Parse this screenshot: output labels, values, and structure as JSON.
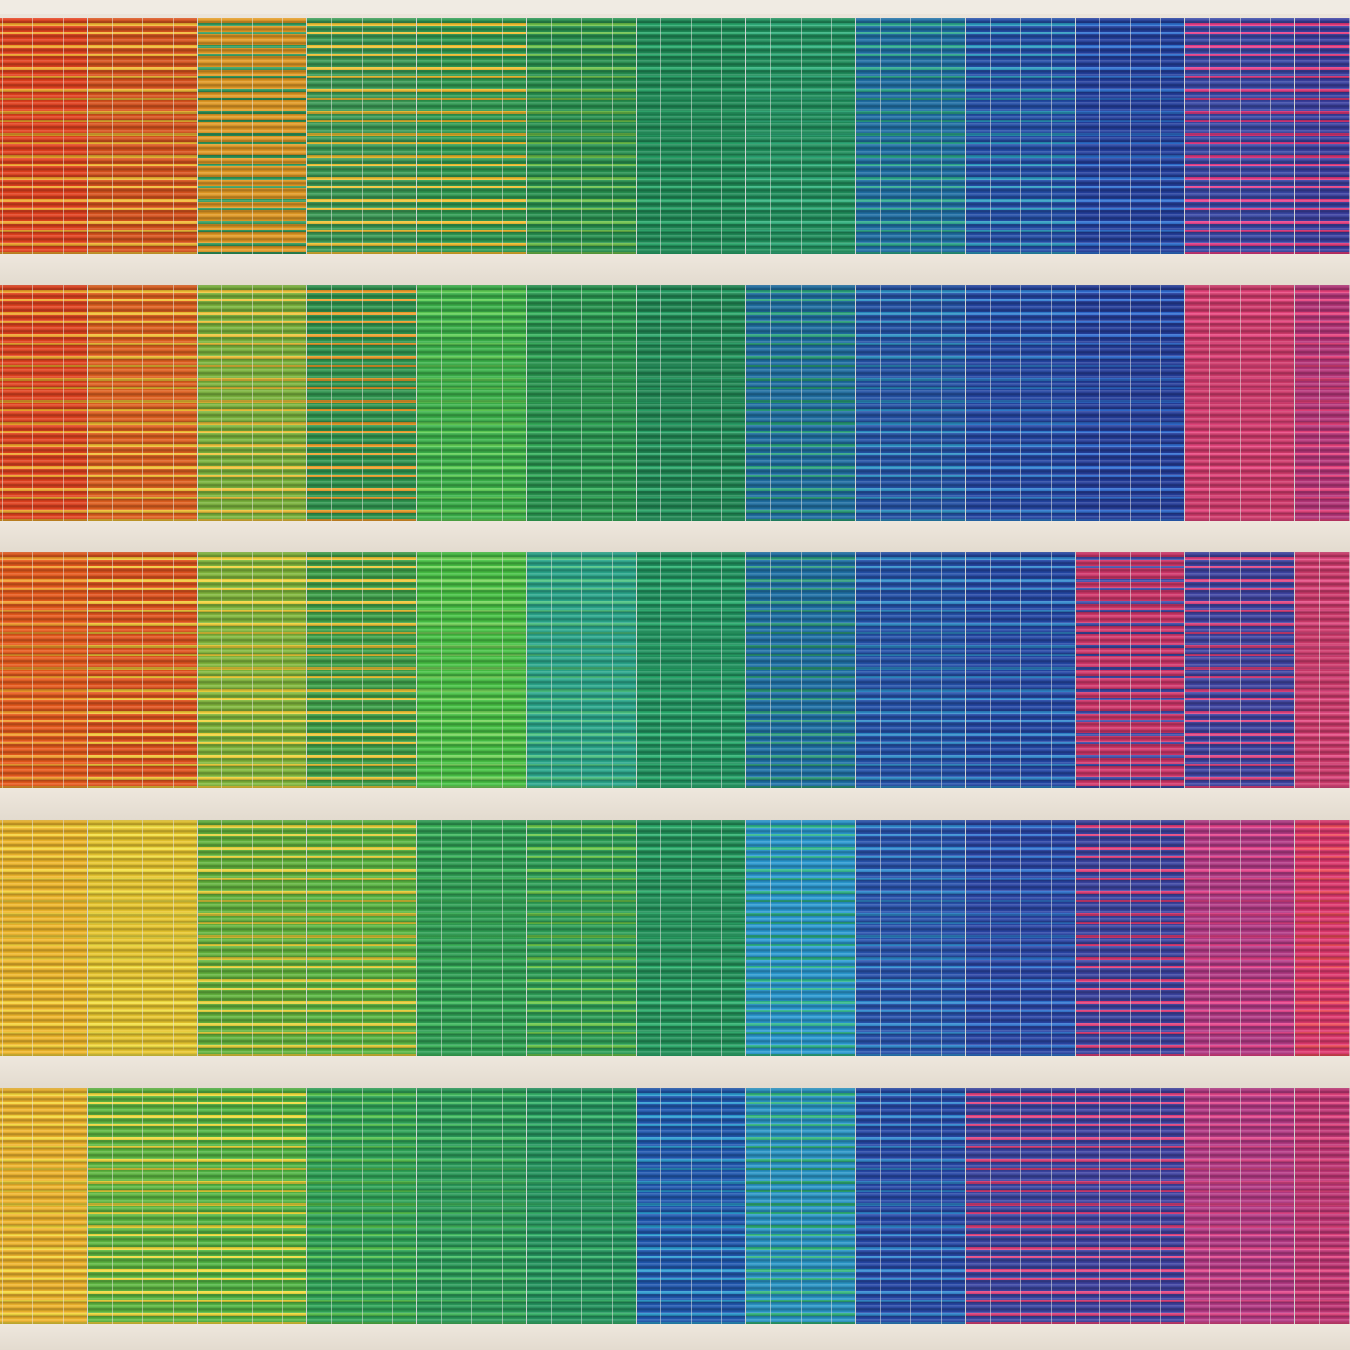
{
  "scene": {
    "subject": "building-facade-with-rainbow-window-blinds",
    "slab_color": "#eee7dd",
    "floors": [
      {
        "name": "floor-1",
        "panels": [
          {
            "base": "#e3401e",
            "accent": "#f0a32a"
          },
          {
            "base": "#d9531d",
            "accent": "#f2b833"
          },
          {
            "base": "#e29a24",
            "accent": "#2f9a5c"
          },
          {
            "base": "#3a9a55",
            "accent": "#f0c233"
          },
          {
            "base": "#2f9b52",
            "accent": "#f2be2d"
          },
          {
            "base": "#27914f",
            "accent": "#6cc14a"
          },
          {
            "base": "#1e8a56",
            "accent": "#27a86a"
          },
          {
            "base": "#1f8f5c",
            "accent": "#2fb07c"
          },
          {
            "base": "#1f6fa5",
            "accent": "#2aa88c"
          },
          {
            "base": "#234ea8",
            "accent": "#2a9ac0"
          },
          {
            "base": "#233f9e",
            "accent": "#2d6fd0"
          },
          {
            "base": "#3948a6",
            "accent": "#e63d88"
          },
          {
            "base": "#3a3fa0",
            "accent": "#e2387a"
          }
        ]
      },
      {
        "name": "floor-2",
        "panels": [
          {
            "base": "#e2421f",
            "accent": "#f0a32a"
          },
          {
            "base": "#e0601f",
            "accent": "#f2bf33"
          },
          {
            "base": "#7bb43c",
            "accent": "#f0c43a"
          },
          {
            "base": "#2f9650",
            "accent": "#ef9f2b"
          },
          {
            "base": "#3bb24a",
            "accent": "#5fce55"
          },
          {
            "base": "#28944f",
            "accent": "#35b25c"
          },
          {
            "base": "#1f8753",
            "accent": "#2aa66a"
          },
          {
            "base": "#1f6fa3",
            "accent": "#27a07a"
          },
          {
            "base": "#2452a6",
            "accent": "#2b8fc4"
          },
          {
            "base": "#2345a3",
            "accent": "#2f7ed0"
          },
          {
            "base": "#243c9a",
            "accent": "#2f6bd0"
          },
          {
            "base": "#d23a6c",
            "accent": "#e8457e"
          },
          {
            "base": "#b7357a",
            "accent": "#e6407c"
          }
        ]
      },
      {
        "name": "floor-3",
        "panels": [
          {
            "base": "#e85a1c",
            "accent": "#f29a2a"
          },
          {
            "base": "#e2531e",
            "accent": "#f2c435"
          },
          {
            "base": "#82b83c",
            "accent": "#f2d33a"
          },
          {
            "base": "#3ea24a",
            "accent": "#f0c636"
          },
          {
            "base": "#47c244",
            "accent": "#74d45a"
          },
          {
            "base": "#2aa88c",
            "accent": "#48c080"
          },
          {
            "base": "#1f935f",
            "accent": "#2ab070"
          },
          {
            "base": "#1f72a8",
            "accent": "#2a9a7a"
          },
          {
            "base": "#2451aa",
            "accent": "#2d8ac8"
          },
          {
            "base": "#2447a6",
            "accent": "#2f86cc"
          },
          {
            "base": "#d2366b",
            "accent": "#3a4aa8"
          },
          {
            "base": "#3f44a3",
            "accent": "#e0417e"
          },
          {
            "base": "#cf3a6c",
            "accent": "#e34a82"
          }
        ]
      },
      {
        "name": "floor-4",
        "panels": [
          {
            "base": "#f0b72a",
            "accent": "#f6d23a"
          },
          {
            "base": "#e9c72e",
            "accent": "#f3df42"
          },
          {
            "base": "#63b43d",
            "accent": "#e8d23a"
          },
          {
            "base": "#5bb843",
            "accent": "#e6cc36"
          },
          {
            "base": "#2e9f54",
            "accent": "#3db85c"
          },
          {
            "base": "#2ea158",
            "accent": "#6ac748"
          },
          {
            "base": "#22925a",
            "accent": "#2db06e"
          },
          {
            "base": "#2a9ad2",
            "accent": "#2db58a"
          },
          {
            "base": "#2852ad",
            "accent": "#2f8ad0"
          },
          {
            "base": "#2a45a6",
            "accent": "#3074d0"
          },
          {
            "base": "#3b44a2",
            "accent": "#e23d78"
          },
          {
            "base": "#b43a86",
            "accent": "#e6428a"
          },
          {
            "base": "#e0386e",
            "accent": "#f04a5a"
          }
        ]
      },
      {
        "name": "floor-5",
        "panels": [
          {
            "base": "#f0b52c",
            "accent": "#f5d63a"
          },
          {
            "base": "#5eb840",
            "accent": "#f0d93c"
          },
          {
            "base": "#52b644",
            "accent": "#f0dc3a"
          },
          {
            "base": "#2fa558",
            "accent": "#55c24c"
          },
          {
            "base": "#2a9c5a",
            "accent": "#43bc60"
          },
          {
            "base": "#24955f",
            "accent": "#35b46a"
          },
          {
            "base": "#2058b0",
            "accent": "#2a9ad0"
          },
          {
            "base": "#2a97c8",
            "accent": "#2fb47a"
          },
          {
            "base": "#2648a8",
            "accent": "#2f86cf"
          },
          {
            "base": "#3a45a3",
            "accent": "#e2407c"
          },
          {
            "base": "#3f42a2",
            "accent": "#e1417e"
          },
          {
            "base": "#b63a86",
            "accent": "#e2468a"
          },
          {
            "base": "#c23676",
            "accent": "#e2437e"
          }
        ]
      }
    ]
  }
}
